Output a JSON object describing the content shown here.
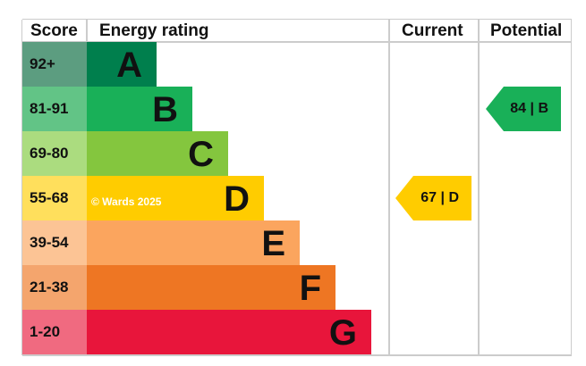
{
  "chart_data": {
    "type": "bar",
    "headers": {
      "score": "Score",
      "rating": "Energy rating",
      "current": "Current",
      "potential": "Potential"
    },
    "bands": [
      {
        "score": "92+",
        "letter": "A",
        "color": "#007f4d",
        "score_color": "#5c9d80"
      },
      {
        "score": "81-91",
        "letter": "B",
        "color": "#19b058",
        "score_color": "#62c486"
      },
      {
        "score": "69-80",
        "letter": "C",
        "color": "#84c63e",
        "score_color": "#abdc7f"
      },
      {
        "score": "55-68",
        "letter": "D",
        "color": "#ffcc00",
        "score_color": "#ffdf5c"
      },
      {
        "score": "39-54",
        "letter": "E",
        "color": "#fba55e",
        "score_color": "#fcc495"
      },
      {
        "score": "21-38",
        "letter": "F",
        "color": "#ee7623",
        "score_color": "#f4a56d"
      },
      {
        "score": "1-20",
        "letter": "G",
        "color": "#e8153b",
        "score_color": "#f06a80"
      }
    ],
    "current": {
      "value": 67,
      "band": "D",
      "label": "67 | D",
      "color": "#ffcc00"
    },
    "potential": {
      "value": 84,
      "band": "B",
      "label": "84 | B",
      "color": "#19b058"
    },
    "watermark": "© Wards 2025"
  }
}
